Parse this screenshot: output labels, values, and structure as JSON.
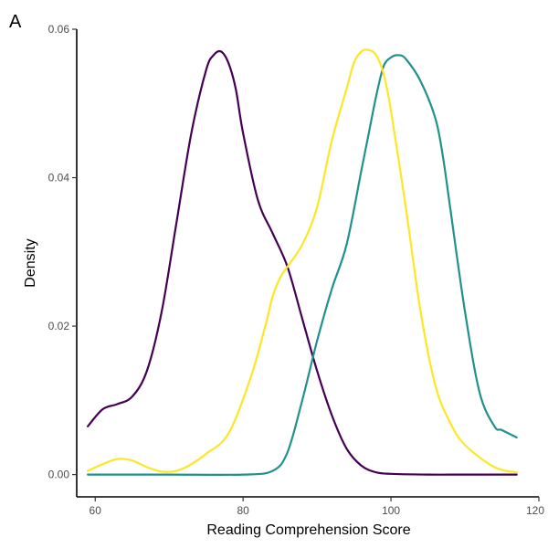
{
  "panel_label": "A",
  "chart_data": {
    "type": "line",
    "xlabel": "Reading Comprehension Score",
    "ylabel": "Density",
    "xlim": [
      57.5,
      120
    ],
    "ylim": [
      -0.003,
      0.06
    ],
    "x_ticks": [
      60,
      80,
      100,
      120
    ],
    "x_tick_labels": [
      "60",
      "80",
      "100",
      "120"
    ],
    "y_ticks": [
      0,
      0.02,
      0.04,
      0.06
    ],
    "y_tick_labels": [
      "0.00",
      "0.02",
      "0.04",
      "0.06"
    ],
    "grid": false,
    "legend": "none",
    "series": [
      {
        "color": "#440154",
        "x": [
          59,
          61,
          63,
          65,
          67,
          69,
          71,
          73,
          75,
          76,
          77,
          78,
          79,
          80,
          82,
          84,
          86,
          88,
          90,
          92,
          94,
          96,
          98,
          100,
          105,
          110,
          117
        ],
        "y": [
          0.0065,
          0.0088,
          0.0095,
          0.0105,
          0.014,
          0.022,
          0.034,
          0.046,
          0.0545,
          0.0565,
          0.057,
          0.0555,
          0.052,
          0.046,
          0.037,
          0.0325,
          0.028,
          0.021,
          0.014,
          0.008,
          0.0035,
          0.0012,
          0.0003,
          0.0001,
          0,
          0,
          0
        ]
      },
      {
        "color": "#21918c",
        "x": [
          59,
          70,
          80,
          84,
          86,
          88,
          90,
          92,
          94,
          96,
          97,
          98,
          99,
          100,
          101,
          102,
          104,
          106,
          107,
          108,
          110,
          112,
          114,
          115,
          117
        ],
        "y": [
          0,
          0,
          0,
          0.0005,
          0.003,
          0.01,
          0.018,
          0.025,
          0.031,
          0.041,
          0.046,
          0.051,
          0.055,
          0.0562,
          0.0565,
          0.056,
          0.053,
          0.048,
          0.043,
          0.036,
          0.022,
          0.011,
          0.0065,
          0.006,
          0.005
        ]
      },
      {
        "color": "#fde725",
        "x": [
          59,
          61,
          63,
          65,
          67,
          69,
          71,
          73,
          75,
          78,
          81,
          83,
          84,
          85,
          86,
          88,
          90,
          92,
          94,
          95,
          96,
          97,
          98,
          99,
          100,
          102,
          104,
          106,
          108,
          110,
          114,
          117
        ],
        "y": [
          0.0005,
          0.0014,
          0.0021,
          0.0019,
          0.001,
          0.0004,
          0.0005,
          0.0014,
          0.0028,
          0.0055,
          0.013,
          0.02,
          0.024,
          0.0265,
          0.028,
          0.031,
          0.036,
          0.045,
          0.052,
          0.0555,
          0.057,
          0.0572,
          0.0565,
          0.054,
          0.049,
          0.036,
          0.022,
          0.012,
          0.007,
          0.004,
          0.001,
          0.0003
        ]
      }
    ]
  }
}
